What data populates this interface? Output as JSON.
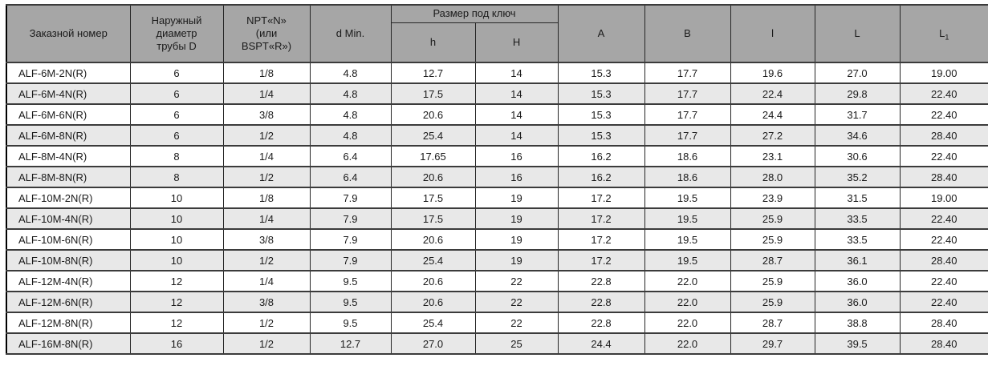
{
  "colors": {
    "header_bg": "#a6a6a6",
    "row_alt_bg": "#e8e8e8",
    "border_inner": "#262626",
    "border_outer": "#000000",
    "text": "#1a1a1a"
  },
  "table": {
    "header": {
      "order_number": "Заказной номер",
      "outer_diameter": "Наружный\nдиаметр\nтрубы D",
      "thread": "NPT«N»\n(или\nBSPT«R»)",
      "d_min": "d Min.",
      "wrench_group": "Размер под ключ",
      "wrench_h": "h",
      "wrench_H": "H",
      "col_a": "A",
      "col_b": "B",
      "col_l": "l",
      "col_L": "L",
      "col_L1_base": "L",
      "col_L1_sub": "1"
    },
    "rows": [
      [
        "ALF-6M-2N(R)",
        "6",
        "1/8",
        "4.8",
        "12.7",
        "14",
        "15.3",
        "17.7",
        "19.6",
        "27.0",
        "19.00"
      ],
      [
        "ALF-6M-4N(R)",
        "6",
        "1/4",
        "4.8",
        "17.5",
        "14",
        "15.3",
        "17.7",
        "22.4",
        "29.8",
        "22.40"
      ],
      [
        "ALF-6M-6N(R)",
        "6",
        "3/8",
        "4.8",
        "20.6",
        "14",
        "15.3",
        "17.7",
        "24.4",
        "31.7",
        "22.40"
      ],
      [
        "ALF-6M-8N(R)",
        "6",
        "1/2",
        "4.8",
        "25.4",
        "14",
        "15.3",
        "17.7",
        "27.2",
        "34.6",
        "28.40"
      ],
      [
        "ALF-8M-4N(R)",
        "8",
        "1/4",
        "6.4",
        "17.65",
        "16",
        "16.2",
        "18.6",
        "23.1",
        "30.6",
        "22.40"
      ],
      [
        "ALF-8M-8N(R)",
        "8",
        "1/2",
        "6.4",
        "20.6",
        "16",
        "16.2",
        "18.6",
        "28.0",
        "35.2",
        "28.40"
      ],
      [
        "ALF-10M-2N(R)",
        "10",
        "1/8",
        "7.9",
        "17.5",
        "19",
        "17.2",
        "19.5",
        "23.9",
        "31.5",
        "19.00"
      ],
      [
        "ALF-10M-4N(R)",
        "10",
        "1/4",
        "7.9",
        "17.5",
        "19",
        "17.2",
        "19.5",
        "25.9",
        "33.5",
        "22.40"
      ],
      [
        "ALF-10M-6N(R)",
        "10",
        "3/8",
        "7.9",
        "20.6",
        "19",
        "17.2",
        "19.5",
        "25.9",
        "33.5",
        "22.40"
      ],
      [
        "ALF-10M-8N(R)",
        "10",
        "1/2",
        "7.9",
        "25.4",
        "19",
        "17.2",
        "19.5",
        "28.7",
        "36.1",
        "28.40"
      ],
      [
        "ALF-12M-4N(R)",
        "12",
        "1/4",
        "9.5",
        "20.6",
        "22",
        "22.8",
        "22.0",
        "25.9",
        "36.0",
        "22.40"
      ],
      [
        "ALF-12M-6N(R)",
        "12",
        "3/8",
        "9.5",
        "20.6",
        "22",
        "22.8",
        "22.0",
        "25.9",
        "36.0",
        "22.40"
      ],
      [
        "ALF-12M-8N(R)",
        "12",
        "1/2",
        "9.5",
        "25.4",
        "22",
        "22.8",
        "22.0",
        "28.7",
        "38.8",
        "28.40"
      ],
      [
        "ALF-16M-8N(R)",
        "16",
        "1/2",
        "12.7",
        "27.0",
        "25",
        "24.4",
        "22.0",
        "29.7",
        "39.5",
        "28.40"
      ]
    ]
  }
}
